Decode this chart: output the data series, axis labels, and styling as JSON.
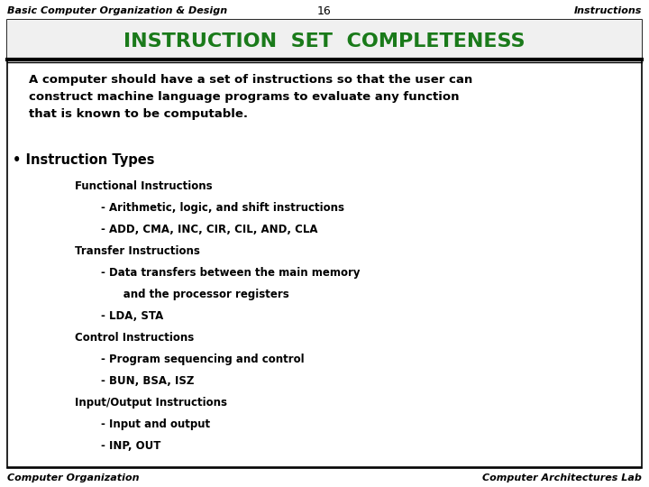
{
  "header_left": "Basic Computer Organization & Design",
  "header_center": "16",
  "header_right": "Instructions",
  "title": "INSTRUCTION  SET  COMPLETENESS",
  "bg_color": "#ffffff",
  "border_color": "#000000",
  "title_color": "#1a7a1a",
  "footer_left": "Computer Organization",
  "footer_right": "Computer Architectures Lab",
  "body_text_color": "#000000",
  "intro_text": "A computer should have a set of instructions so that the user can\nconstruct machine language programs to evaluate any function\nthat is known to be computable.",
  "bullet_header": "• Instruction Types",
  "lines": [
    {
      "text": "Functional Instructions",
      "indent": 0.115,
      "bold": true
    },
    {
      "text": "- Arithmetic, logic, and shift instructions",
      "indent": 0.155,
      "bold": true
    },
    {
      "text": "- ADD, CMA, INC, CIR, CIL, AND, CLA",
      "indent": 0.155,
      "bold": true
    },
    {
      "text": "Transfer Instructions",
      "indent": 0.115,
      "bold": true
    },
    {
      "text": "- Data transfers between the main memory",
      "indent": 0.155,
      "bold": true
    },
    {
      "text": "      and the processor registers",
      "indent": 0.155,
      "bold": true
    },
    {
      "text": "- LDA, STA",
      "indent": 0.155,
      "bold": true
    },
    {
      "text": "Control Instructions",
      "indent": 0.115,
      "bold": true
    },
    {
      "text": "- Program sequencing and control",
      "indent": 0.155,
      "bold": true
    },
    {
      "text": "- BUN, BSA, ISZ",
      "indent": 0.155,
      "bold": true
    },
    {
      "text": "Input/Output Instructions",
      "indent": 0.115,
      "bold": true
    },
    {
      "text": "- Input and output",
      "indent": 0.155,
      "bold": true
    },
    {
      "text": "- INP, OUT",
      "indent": 0.155,
      "bold": true
    }
  ]
}
